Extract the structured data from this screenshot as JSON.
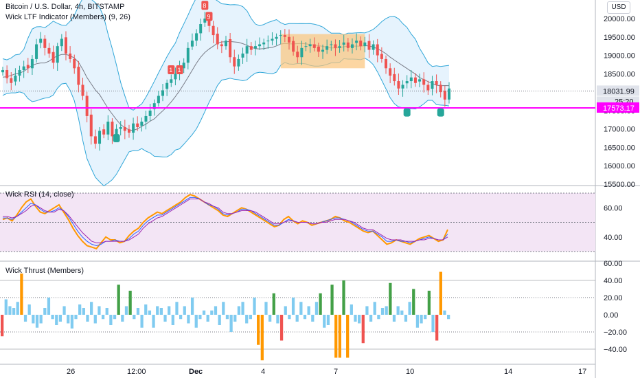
{
  "header": {
    "symbol": "Bitcoin / U.S. Dollar, 4h, BITSTAMP",
    "indicator": "Wick LTF Indicator (Members) (9, 26)",
    "currency": "USD"
  },
  "panes": {
    "price_label": "",
    "rsi_label": "Wick RSI (14, close)",
    "thrust_label": "Wick Thrust (Members)"
  },
  "colors": {
    "up": "#26a69a",
    "down": "#ef5350",
    "band_line": "#2fa6d8",
    "band_fill": "#e3f2fd",
    "basis": "#787b86",
    "magenta": "#ff00ff",
    "box": "#fbc47b",
    "rsi_fill": "#f3e5f5",
    "rsi_orange": "#ff9800",
    "rsi_blue": "#2962ff",
    "rsi_purple": "#9c27b0",
    "bar_orange": "#ff9800",
    "bar_green": "#43a047",
    "bar_red": "#ef5350",
    "bar_light": "#80cbf0"
  },
  "chart_data": [
    {
      "type": "candlestick",
      "title": "Bitcoin / U.S. Dollar, 4h, BITSTAMP",
      "ylim": [
        15500,
        20300
      ],
      "yticks": [
        15500,
        16000,
        16500,
        17000,
        17500,
        18000,
        18500,
        19000,
        19500,
        20000
      ],
      "ytick_labels": [
        "15500.00",
        "16000.00",
        "16500.00",
        "17000.00",
        "17500.00",
        "18000.00",
        "18500.00",
        "19000.00",
        "19500.00",
        "20000.00"
      ],
      "xtick_labels": [
        "26",
        "12:00",
        "Dec",
        "4",
        "7",
        "10",
        "14",
        "17"
      ],
      "close_path": [
        18600,
        18380,
        18250,
        18450,
        18600,
        18700,
        18650,
        18900,
        19300,
        19450,
        19200,
        19050,
        18800,
        19250,
        19450,
        19050,
        18900,
        18650,
        18200,
        17900,
        17350,
        16800,
        16600,
        16950,
        16850,
        17200,
        16800,
        17000,
        17050,
        16950,
        16900,
        17150,
        17050,
        17200,
        17350,
        17500,
        17700,
        17900,
        18050,
        18250,
        18350,
        18500,
        18650,
        18800,
        19200,
        19400,
        19600,
        19850,
        20000,
        19800,
        19550,
        19300,
        19250,
        19400,
        18950,
        18700,
        18900,
        19050,
        19250,
        19150,
        19250,
        19300,
        19350,
        19400,
        19450,
        19500,
        19550,
        19500,
        19350,
        19100,
        18950,
        19200,
        19250,
        19300,
        19200,
        19100,
        19150,
        19250,
        19300,
        19200,
        19250,
        19350,
        19200,
        19300,
        19400,
        19250,
        19350,
        19150,
        19300,
        19000,
        18900,
        18650,
        18450,
        18300,
        18100,
        18200,
        18300,
        18400,
        18250,
        18350,
        18200,
        18050,
        18300,
        18200,
        18000,
        17800,
        18100
      ],
      "current_price": "18031.99",
      "countdown": "25:20",
      "horizontal_line": "17573.17",
      "shaded_box": {
        "from_bar": 66,
        "to_bar": 86,
        "y_top": 19580,
        "y_bottom": 18650
      },
      "signals": [
        {
          "bar": 40,
          "label": "1",
          "kind": "sell",
          "price": 18600
        },
        {
          "bar": 42,
          "label": "1",
          "kind": "sell",
          "price": 18600
        },
        {
          "bar": 48,
          "label": "8",
          "kind": "sell",
          "price": 20350
        },
        {
          "bar": 49,
          "label": "9",
          "kind": "sell",
          "price": 20050
        },
        {
          "bar": 27,
          "label": "",
          "kind": "buy",
          "price": 16750
        },
        {
          "bar": 96,
          "label": "",
          "kind": "buy",
          "price": 17450
        },
        {
          "bar": 104,
          "label": "",
          "kind": "buy",
          "price": 17450
        }
      ]
    },
    {
      "type": "line",
      "title": "Wick RSI (14, close)",
      "ylim": [
        28,
        72
      ],
      "yticks": [
        40,
        60
      ],
      "ytick_labels": [
        "40.00",
        "60.00"
      ],
      "levels": [
        30,
        50,
        70
      ],
      "series": [
        {
          "values": [
            52,
            53,
            51,
            55,
            60,
            64,
            66,
            61,
            57,
            56,
            58,
            60,
            62,
            57,
            52,
            46,
            41,
            37,
            34,
            33,
            32,
            36,
            40,
            38,
            38,
            36,
            37,
            41,
            44,
            46,
            50,
            53,
            55,
            57,
            56,
            58,
            60,
            62,
            64,
            67,
            69,
            68,
            66,
            64,
            62,
            60,
            58,
            55,
            54,
            56,
            58,
            60,
            59,
            57,
            55,
            53,
            51,
            49,
            47,
            48,
            52,
            54,
            51,
            49,
            51,
            50,
            48,
            49,
            50,
            51,
            52,
            54,
            53,
            51,
            50,
            48,
            46,
            44,
            43,
            44,
            41,
            38,
            35,
            36,
            38,
            37,
            36,
            35,
            37,
            39,
            40,
            41,
            39,
            37,
            38,
            45
          ]
        },
        {
          "values": [
            53,
            53,
            52,
            54,
            57,
            60,
            63,
            62,
            59,
            57,
            57,
            58,
            60,
            58,
            54,
            49,
            44,
            40,
            37,
            35,
            34,
            35,
            37,
            37,
            38,
            37,
            37,
            39,
            42,
            44,
            48,
            51,
            53,
            55,
            55,
            57,
            59,
            61,
            63,
            65,
            67,
            67,
            66,
            64,
            62,
            61,
            59,
            56,
            55,
            56,
            57,
            59,
            59,
            58,
            56,
            54,
            52,
            50,
            48,
            48,
            50,
            52,
            51,
            50,
            50,
            50,
            49,
            49,
            50,
            51,
            52,
            53,
            53,
            52,
            51,
            49,
            47,
            45,
            44,
            44,
            42,
            40,
            37,
            37,
            38,
            37,
            37,
            36,
            37,
            38,
            39,
            40,
            39,
            38,
            38,
            42
          ]
        },
        {
          "values": [
            54,
            54,
            53,
            54,
            56,
            58,
            61,
            62,
            60,
            58,
            57,
            57,
            59,
            58,
            55,
            51,
            47,
            43,
            40,
            37,
            36,
            36,
            37,
            37,
            37,
            37,
            37,
            38,
            40,
            42,
            46,
            49,
            51,
            53,
            54,
            56,
            58,
            60,
            62,
            64,
            66,
            66,
            66,
            64,
            63,
            61,
            60,
            57,
            56,
            56,
            57,
            58,
            58,
            58,
            57,
            55,
            53,
            51,
            49,
            49,
            50,
            51,
            51,
            50,
            50,
            50,
            49,
            49,
            50,
            50,
            51,
            52,
            52,
            52,
            51,
            50,
            48,
            46,
            45,
            45,
            43,
            41,
            39,
            38,
            38,
            38,
            37,
            37,
            37,
            38,
            38,
            39,
            39,
            38,
            38,
            40
          ]
        }
      ]
    },
    {
      "type": "bar",
      "title": "Wick Thrust (Members)",
      "ylim": [
        -55,
        62
      ],
      "yticks": [
        -40,
        -20,
        0,
        20,
        40,
        60
      ],
      "ytick_labels": [
        "−40.00",
        "−20.00",
        "0.00",
        "20.00",
        "40.00",
        "60.00"
      ],
      "values": [
        -25,
        18,
        10,
        8,
        15,
        48,
        -8,
        12,
        -10,
        -15,
        -10,
        8,
        20,
        -5,
        -12,
        -8,
        10,
        -10,
        -16,
        -5,
        12,
        8,
        -8,
        15,
        -10,
        10,
        -5,
        8,
        -12,
        -5,
        35,
        -8,
        10,
        28,
        -5,
        8,
        -15,
        12,
        5,
        -15,
        10,
        8,
        -8,
        10,
        -12,
        15,
        -5,
        10,
        -10,
        20,
        -15,
        -5,
        5,
        -8,
        5,
        10,
        -12,
        15,
        -5,
        -20,
        -8,
        10,
        15,
        -10,
        -5,
        20,
        -35,
        -53,
        15,
        -8,
        25,
        -10,
        -30,
        10,
        -5,
        20,
        -8,
        15,
        -5,
        10,
        -8,
        15,
        25,
        -15,
        -12,
        35,
        -50,
        -50,
        40,
        -50,
        12,
        -8,
        -10,
        -33,
        10,
        -8,
        15,
        -5,
        8,
        10,
        37,
        -8,
        10,
        5,
        -8,
        15,
        30,
        -15,
        -10,
        -5,
        28,
        -20,
        -30,
        50,
        5,
        -5
      ],
      "bar_colors": [
        "red",
        "light",
        "light",
        "light",
        "light",
        "orange",
        "light",
        "light",
        "light",
        "light",
        "light",
        "light",
        "light",
        "light",
        "light",
        "light",
        "light",
        "light",
        "light",
        "light",
        "light",
        "light",
        "light",
        "light",
        "light",
        "light",
        "light",
        "light",
        "light",
        "light",
        "green",
        "light",
        "light",
        "green",
        "light",
        "light",
        "light",
        "light",
        "light",
        "light",
        "light",
        "light",
        "light",
        "light",
        "light",
        "light",
        "light",
        "light",
        "light",
        "light",
        "light",
        "light",
        "light",
        "light",
        "light",
        "light",
        "light",
        "light",
        "light",
        "light",
        "light",
        "light",
        "light",
        "light",
        "light",
        "light",
        "orange",
        "orange",
        "light",
        "light",
        "green",
        "light",
        "red",
        "light",
        "light",
        "light",
        "light",
        "light",
        "light",
        "light",
        "light",
        "light",
        "green",
        "light",
        "light",
        "green",
        "orange",
        "orange",
        "green",
        "orange",
        "light",
        "light",
        "light",
        "red",
        "light",
        "light",
        "light",
        "light",
        "light",
        "light",
        "green",
        "light",
        "light",
        "light",
        "light",
        "light",
        "green",
        "light",
        "light",
        "light",
        "green",
        "light",
        "red",
        "orange",
        "light",
        "light"
      ]
    }
  ]
}
